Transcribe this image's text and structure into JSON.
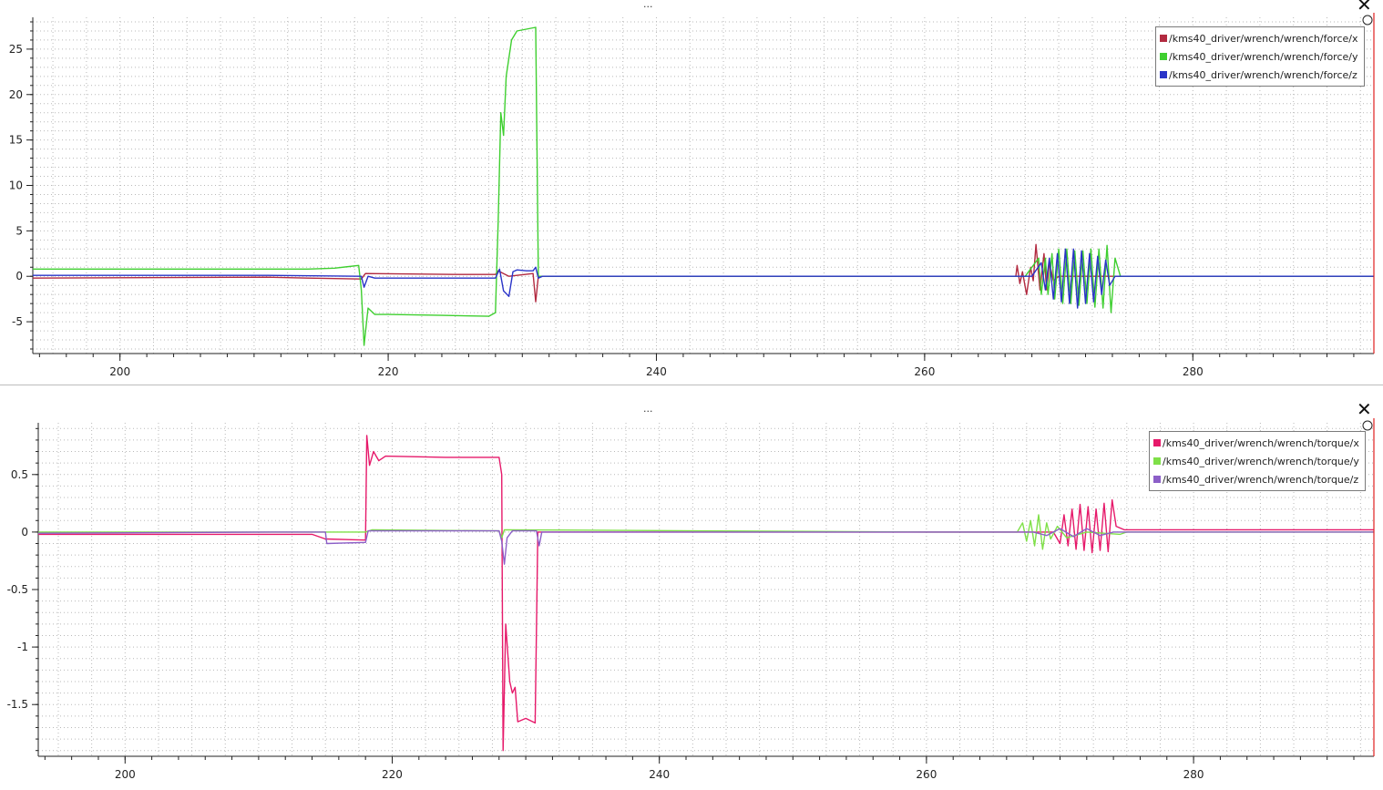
{
  "panels": {
    "top": {
      "menu_label": "...",
      "close_label": "✕"
    },
    "bottom": {
      "menu_label": "...",
      "close_label": "✕"
    }
  },
  "chart_data": [
    {
      "type": "line",
      "title": "",
      "xlabel": "",
      "ylabel": "",
      "xlim": [
        193.5,
        293.5
      ],
      "ylim": [
        -8.5,
        28.5
      ],
      "grid": true,
      "legend_position": "top-right",
      "x_ticks": [
        200,
        220,
        240,
        260,
        280
      ],
      "x_tick_labels": [
        "200",
        "220",
        "240",
        "260",
        "280"
      ],
      "y_ticks": [
        25,
        20,
        15,
        10,
        5,
        0,
        -5
      ],
      "y_tick_labels": [
        "25",
        "20",
        "15",
        "10",
        "5",
        "0",
        "-5"
      ],
      "series": [
        {
          "name": "/kms40_driver/wrench/wrench/force/x",
          "color": "#b22a40",
          "points": [
            [
              193.5,
              -0.2
            ],
            [
              211,
              -0.1
            ],
            [
              214,
              -0.2
            ],
            [
              218,
              -0.3
            ],
            [
              218.3,
              0.3
            ],
            [
              225,
              0.2
            ],
            [
              228,
              0.2
            ],
            [
              228.2,
              0.6
            ],
            [
              229,
              0.0
            ],
            [
              230.8,
              0.3
            ],
            [
              231,
              -2.8
            ],
            [
              231.2,
              0.0
            ],
            [
              260,
              0.0
            ],
            [
              266.8,
              0.0
            ],
            [
              266.9,
              1.2
            ],
            [
              267.1,
              -0.8
            ],
            [
              267.3,
              0.5
            ],
            [
              267.6,
              -2.0
            ],
            [
              267.9,
              1.0
            ],
            [
              268.1,
              -0.5
            ],
            [
              268.3,
              3.5
            ],
            [
              268.6,
              -1.5
            ],
            [
              268.9,
              2.5
            ],
            [
              269.1,
              -1.5
            ],
            [
              269.3,
              1.5
            ],
            [
              269.6,
              -0.5
            ],
            [
              270,
              0.0
            ],
            [
              293.5,
              0.0
            ]
          ]
        },
        {
          "name": "/kms40_driver/wrench/wrench/force/y",
          "color": "#3fcf30",
          "points": [
            [
              193.5,
              0.8
            ],
            [
              210,
              0.8
            ],
            [
              214,
              0.8
            ],
            [
              216,
              0.9
            ],
            [
              217.8,
              1.2
            ],
            [
              218,
              -1.5
            ],
            [
              218.2,
              -7.6
            ],
            [
              218.5,
              -3.5
            ],
            [
              219,
              -4.2
            ],
            [
              220,
              -4.2
            ],
            [
              224,
              -4.3
            ],
            [
              227.5,
              -4.4
            ],
            [
              228,
              -4.0
            ],
            [
              228.2,
              6.0
            ],
            [
              228.4,
              18.0
            ],
            [
              228.6,
              15.5
            ],
            [
              228.8,
              22.0
            ],
            [
              229.2,
              26.0
            ],
            [
              229.6,
              27.0
            ],
            [
              231,
              27.4
            ],
            [
              231.2,
              0.0
            ],
            [
              260,
              0.0
            ],
            [
              267.5,
              0.0
            ],
            [
              268.5,
              2.0
            ],
            [
              268.7,
              -2.0
            ],
            [
              269,
              2.0
            ],
            [
              269.2,
              -2.0
            ],
            [
              269.5,
              2.5
            ],
            [
              269.7,
              -2.5
            ],
            [
              270,
              3.0
            ],
            [
              270.3,
              -3.0
            ],
            [
              270.6,
              3.0
            ],
            [
              270.9,
              -3.0
            ],
            [
              271.2,
              2.8
            ],
            [
              271.5,
              -3.2
            ],
            [
              271.8,
              2.8
            ],
            [
              272.1,
              -3.0
            ],
            [
              272.4,
              3.0
            ],
            [
              272.7,
              -3.4
            ],
            [
              273,
              3.0
            ],
            [
              273.3,
              -3.5
            ],
            [
              273.6,
              3.4
            ],
            [
              273.9,
              -4.0
            ],
            [
              274.2,
              2.0
            ],
            [
              274.6,
              0.0
            ],
            [
              293.5,
              0.0
            ]
          ]
        },
        {
          "name": "/kms40_driver/wrench/wrench/force/z",
          "color": "#2a34c8",
          "points": [
            [
              193.5,
              0.1
            ],
            [
              211,
              0.1
            ],
            [
              218,
              0.0
            ],
            [
              218.2,
              -1.2
            ],
            [
              218.5,
              0.0
            ],
            [
              219,
              -0.2
            ],
            [
              228,
              -0.2
            ],
            [
              228.3,
              0.8
            ],
            [
              228.6,
              -1.6
            ],
            [
              229,
              -2.2
            ],
            [
              229.3,
              0.5
            ],
            [
              229.6,
              0.7
            ],
            [
              230.3,
              0.6
            ],
            [
              230.8,
              0.6
            ],
            [
              231,
              1.0
            ],
            [
              231.2,
              -0.2
            ],
            [
              231.5,
              0.0
            ],
            [
              260,
              0.0
            ],
            [
              268,
              0.0
            ],
            [
              268.7,
              1.5
            ],
            [
              269,
              -1.5
            ],
            [
              269.3,
              2.0
            ],
            [
              269.6,
              -2.5
            ],
            [
              269.9,
              2.5
            ],
            [
              270.2,
              -2.8
            ],
            [
              270.5,
              3.0
            ],
            [
              270.8,
              -3.0
            ],
            [
              271.1,
              3.0
            ],
            [
              271.4,
              -3.5
            ],
            [
              271.7,
              2.8
            ],
            [
              272,
              -3.0
            ],
            [
              272.3,
              2.5
            ],
            [
              272.6,
              -2.8
            ],
            [
              272.9,
              2.2
            ],
            [
              273.2,
              -2.0
            ],
            [
              273.5,
              1.8
            ],
            [
              273.8,
              -1.0
            ],
            [
              274.2,
              0.0
            ],
            [
              293.5,
              0.0
            ]
          ]
        }
      ]
    },
    {
      "type": "line",
      "title": "",
      "xlabel": "",
      "ylabel": "",
      "xlim": [
        193.5,
        293.5
      ],
      "ylim": [
        -1.95,
        0.95
      ],
      "grid": true,
      "legend_position": "top-right",
      "x_ticks": [
        200,
        220,
        240,
        260,
        280
      ],
      "x_tick_labels": [
        "200",
        "220",
        "240",
        "260",
        "280"
      ],
      "y_ticks": [
        0.5,
        0,
        -0.5,
        -1,
        -1.5
      ],
      "y_tick_labels": [
        "0.5",
        "0",
        "-0.5",
        "-1",
        "-1.5"
      ],
      "series": [
        {
          "name": "/kms40_driver/wrench/wrench/torque/x",
          "color": "#e6196a",
          "points": [
            [
              193.5,
              -0.02
            ],
            [
              211,
              -0.02
            ],
            [
              214,
              -0.02
            ],
            [
              215,
              -0.06
            ],
            [
              218,
              -0.07
            ],
            [
              218.1,
              0.84
            ],
            [
              218.3,
              0.58
            ],
            [
              218.6,
              0.7
            ],
            [
              219,
              0.62
            ],
            [
              219.5,
              0.66
            ],
            [
              224,
              0.65
            ],
            [
              228,
              0.65
            ],
            [
              228.2,
              0.5
            ],
            [
              228.3,
              -1.9
            ],
            [
              228.5,
              -0.8
            ],
            [
              228.8,
              -1.3
            ],
            [
              229,
              -1.4
            ],
            [
              229.2,
              -1.35
            ],
            [
              229.4,
              -1.65
            ],
            [
              230,
              -1.62
            ],
            [
              230.7,
              -1.66
            ],
            [
              230.9,
              0.0
            ],
            [
              260,
              0.0
            ],
            [
              269.5,
              0.0
            ],
            [
              270,
              -0.1
            ],
            [
              270.3,
              0.15
            ],
            [
              270.6,
              -0.12
            ],
            [
              270.9,
              0.2
            ],
            [
              271.2,
              -0.15
            ],
            [
              271.5,
              0.24
            ],
            [
              271.8,
              -0.16
            ],
            [
              272.1,
              0.22
            ],
            [
              272.4,
              -0.18
            ],
            [
              272.7,
              0.2
            ],
            [
              273,
              -0.16
            ],
            [
              273.3,
              0.25
            ],
            [
              273.6,
              -0.17
            ],
            [
              273.9,
              0.28
            ],
            [
              274.2,
              0.05
            ],
            [
              274.8,
              0.02
            ],
            [
              293.5,
              0.02
            ]
          ]
        },
        {
          "name": "/kms40_driver/wrench/wrench/torque/y",
          "color": "#7fe048",
          "points": [
            [
              193.5,
              0.0
            ],
            [
              211,
              0.0
            ],
            [
              215,
              0.0
            ],
            [
              218,
              0.0
            ],
            [
              218.5,
              0.02
            ],
            [
              228,
              0.01
            ],
            [
              228.2,
              -0.05
            ],
            [
              228.4,
              0.02
            ],
            [
              260,
              0.0
            ],
            [
              266.8,
              0.0
            ],
            [
              267.2,
              0.08
            ],
            [
              267.5,
              -0.08
            ],
            [
              267.8,
              0.1
            ],
            [
              268.1,
              -0.12
            ],
            [
              268.4,
              0.15
            ],
            [
              268.7,
              -0.15
            ],
            [
              269,
              0.08
            ],
            [
              269.3,
              -0.06
            ],
            [
              269.8,
              0.05
            ],
            [
              270.5,
              -0.05
            ],
            [
              272,
              0.0
            ],
            [
              274.5,
              -0.02
            ],
            [
              275,
              0.0
            ],
            [
              293.5,
              0.0
            ]
          ]
        },
        {
          "name": "/kms40_driver/wrench/wrench/torque/z",
          "color": "#8c5fc8",
          "points": [
            [
              193.5,
              -0.01
            ],
            [
              211,
              0.0
            ],
            [
              215,
              0.0
            ],
            [
              215.1,
              -0.1
            ],
            [
              218,
              -0.09
            ],
            [
              218.2,
              0.01
            ],
            [
              228,
              0.01
            ],
            [
              228.2,
              -0.08
            ],
            [
              228.4,
              -0.28
            ],
            [
              228.6,
              -0.05
            ],
            [
              229,
              0.01
            ],
            [
              230.8,
              0.01
            ],
            [
              231,
              -0.12
            ],
            [
              231.2,
              0.0
            ],
            [
              260,
              0.0
            ],
            [
              268,
              0.0
            ],
            [
              269,
              -0.03
            ],
            [
              270,
              0.03
            ],
            [
              271,
              -0.04
            ],
            [
              272,
              0.03
            ],
            [
              273,
              -0.03
            ],
            [
              274,
              0.0
            ],
            [
              293.5,
              0.0
            ]
          ]
        }
      ]
    }
  ]
}
